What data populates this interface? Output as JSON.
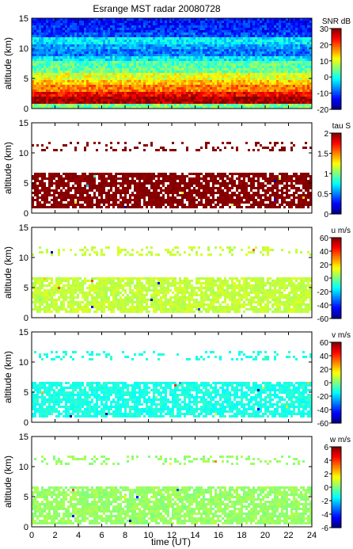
{
  "title": "Esrange MST radar 20080728",
  "xlabel": "time (UT)",
  "chart_data": [
    {
      "type": "heatmap",
      "variable": "SNR",
      "colorbar_label": "SNR dB",
      "ylabel": "altitude (km)",
      "xlim": [
        0,
        24
      ],
      "ylim": [
        0,
        15
      ],
      "clim": [
        -20,
        30
      ],
      "colorbar_ticks": [
        30,
        20,
        10,
        0,
        -10,
        -20
      ],
      "coverage": "full",
      "profile": [
        {
          "alt": 0.5,
          "value": 5
        },
        {
          "alt": 1.5,
          "value": 28
        },
        {
          "alt": 2.5,
          "value": 24
        },
        {
          "alt": 3.5,
          "value": 18
        },
        {
          "alt": 4.5,
          "value": 14
        },
        {
          "alt": 5.5,
          "value": 10
        },
        {
          "alt": 6.5,
          "value": 4
        },
        {
          "alt": 7.5,
          "value": 3
        },
        {
          "alt": 8.5,
          "value": -2
        },
        {
          "alt": 9.5,
          "value": -8
        },
        {
          "alt": 10.5,
          "value": -6
        },
        {
          "alt": 11.5,
          "value": -2
        },
        {
          "alt": 12.5,
          "value": -10
        },
        {
          "alt": 13.5,
          "value": -12
        },
        {
          "alt": 14.5,
          "value": -13
        }
      ]
    },
    {
      "type": "heatmap",
      "variable": "tau",
      "colorbar_label": "tau S",
      "ylabel": "altitude (km)",
      "xlim": [
        0,
        24
      ],
      "ylim": [
        0,
        15
      ],
      "clim": [
        0,
        2
      ],
      "colorbar_ticks": [
        2,
        1.5,
        1,
        0.5,
        0
      ],
      "dominant_value": 2,
      "echo_layers_km": [
        [
          1,
          7
        ],
        [
          10.5,
          12
        ]
      ]
    },
    {
      "type": "heatmap",
      "variable": "u",
      "colorbar_label": "u m/s",
      "ylabel": "altitude (km)",
      "xlim": [
        0,
        24
      ],
      "ylim": [
        0,
        15
      ],
      "clim": [
        -60,
        60
      ],
      "colorbar_ticks": [
        60,
        40,
        20,
        0,
        -20,
        -40,
        -60
      ],
      "dominant_value": 8,
      "echo_layers_km": [
        [
          1,
          7
        ],
        [
          10.5,
          12
        ]
      ]
    },
    {
      "type": "heatmap",
      "variable": "v",
      "colorbar_label": "v m/s",
      "ylabel": "altitude (km)",
      "xlim": [
        0,
        24
      ],
      "ylim": [
        0,
        15
      ],
      "clim": [
        -60,
        60
      ],
      "colorbar_ticks": [
        60,
        40,
        20,
        0,
        -20,
        -40,
        -60
      ],
      "dominant_value": -12,
      "echo_layers_km": [
        [
          1,
          7
        ],
        [
          10.5,
          12
        ]
      ]
    },
    {
      "type": "heatmap",
      "variable": "w",
      "colorbar_label": "w m/s",
      "ylabel": "altitude (km)",
      "xlim": [
        0,
        24
      ],
      "ylim": [
        0,
        15
      ],
      "clim": [
        -6,
        6
      ],
      "colorbar_ticks": [
        6,
        4,
        2,
        0,
        -2,
        -4,
        -6
      ],
      "dominant_value": 0.3,
      "echo_layers_km": [
        [
          0.5,
          7
        ],
        [
          10.5,
          12
        ]
      ]
    }
  ],
  "x_ticks": [
    0,
    2,
    4,
    6,
    8,
    10,
    12,
    14,
    16,
    18,
    20,
    22,
    24
  ],
  "y_ticks": [
    0,
    5,
    10,
    15
  ]
}
